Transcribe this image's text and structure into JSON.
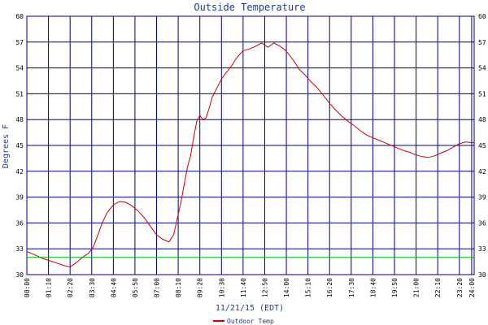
{
  "chart_data": {
    "type": "line",
    "title": "Outside Temperature",
    "xlabel": "11/21/15 (EDT)",
    "ylabel": "Degrees F",
    "ylim": [
      30,
      60
    ],
    "yticks": [
      30,
      33,
      36,
      39,
      42,
      45,
      48,
      51,
      54,
      57,
      60
    ],
    "xlim": [
      0,
      1448
    ],
    "x_tick_labels": [
      {
        "value": 0,
        "label": "00:00"
      },
      {
        "value": 70,
        "label": "01:10"
      },
      {
        "value": 140,
        "label": "02:20"
      },
      {
        "value": 210,
        "label": "03:30"
      },
      {
        "value": 280,
        "label": "04:40"
      },
      {
        "value": 350,
        "label": "05:50"
      },
      {
        "value": 420,
        "label": "07:00"
      },
      {
        "value": 490,
        "label": "08:10"
      },
      {
        "value": 560,
        "label": "09:20"
      },
      {
        "value": 630,
        "label": "10:30"
      },
      {
        "value": 700,
        "label": "11:40"
      },
      {
        "value": 770,
        "label": "12:50"
      },
      {
        "value": 840,
        "label": "14:00"
      },
      {
        "value": 910,
        "label": "15:10"
      },
      {
        "value": 980,
        "label": "16:20"
      },
      {
        "value": 1050,
        "label": "17:30"
      },
      {
        "value": 1120,
        "label": "18:40"
      },
      {
        "value": 1190,
        "label": "19:50"
      },
      {
        "value": 1260,
        "label": "21:00"
      },
      {
        "value": 1330,
        "label": "22:10"
      },
      {
        "value": 1400,
        "label": "23:20"
      },
      {
        "value": 1440,
        "label": "24:00"
      }
    ],
    "grid": true,
    "legend": "bottom",
    "series": [
      {
        "name": "Outdoor Temp",
        "color": "#cc0000",
        "x": [
          0,
          25,
          50,
          75,
          100,
          125,
          140,
          160,
          180,
          200,
          215,
          230,
          245,
          260,
          280,
          300,
          320,
          340,
          360,
          380,
          400,
          420,
          440,
          460,
          475,
          490,
          500,
          510,
          520,
          530,
          540,
          550,
          560,
          570,
          580,
          590,
          600,
          610,
          620,
          630,
          640,
          660,
          680,
          700,
          720,
          740,
          760,
          780,
          800,
          820,
          835,
          850,
          860,
          870,
          880,
          900,
          920,
          940,
          960,
          980,
          1000,
          1020,
          1040,
          1060,
          1080,
          1100,
          1120,
          1140,
          1160,
          1180,
          1200,
          1220,
          1240,
          1260,
          1280,
          1300,
          1320,
          1340,
          1360,
          1380,
          1400,
          1420,
          1448
        ],
        "y": [
          32.7,
          32.3,
          31.9,
          31.6,
          31.3,
          31.0,
          30.9,
          31.4,
          32.0,
          32.5,
          33.2,
          34.6,
          36.1,
          37.2,
          38.1,
          38.5,
          38.4,
          38.0,
          37.4,
          36.6,
          35.6,
          34.6,
          34.1,
          33.8,
          34.6,
          37.0,
          38.6,
          40.6,
          42.5,
          43.8,
          45.9,
          47.8,
          48.5,
          48.0,
          48.2,
          49.3,
          50.6,
          51.3,
          52.0,
          52.7,
          53.2,
          54.1,
          55.2,
          56.0,
          56.2,
          56.5,
          56.9,
          56.4,
          56.9,
          56.5,
          56.1,
          55.5,
          55.0,
          54.5,
          53.9,
          53.2,
          52.4,
          51.7,
          50.8,
          49.9,
          49.1,
          48.4,
          47.8,
          47.3,
          46.7,
          46.2,
          45.9,
          45.6,
          45.3,
          45.0,
          44.7,
          44.4,
          44.2,
          43.9,
          43.7,
          43.6,
          43.8,
          44.1,
          44.4,
          44.8,
          45.2,
          45.4,
          45.3
        ]
      },
      {
        "name": "",
        "color": "#00aa00",
        "x": [
          0,
          1448
        ],
        "y": [
          32,
          32
        ]
      }
    ]
  },
  "colors": {
    "grid": "#000080",
    "frame": "#000080",
    "freeze_line": "#00aa00",
    "temp_line": "#cc0000"
  }
}
